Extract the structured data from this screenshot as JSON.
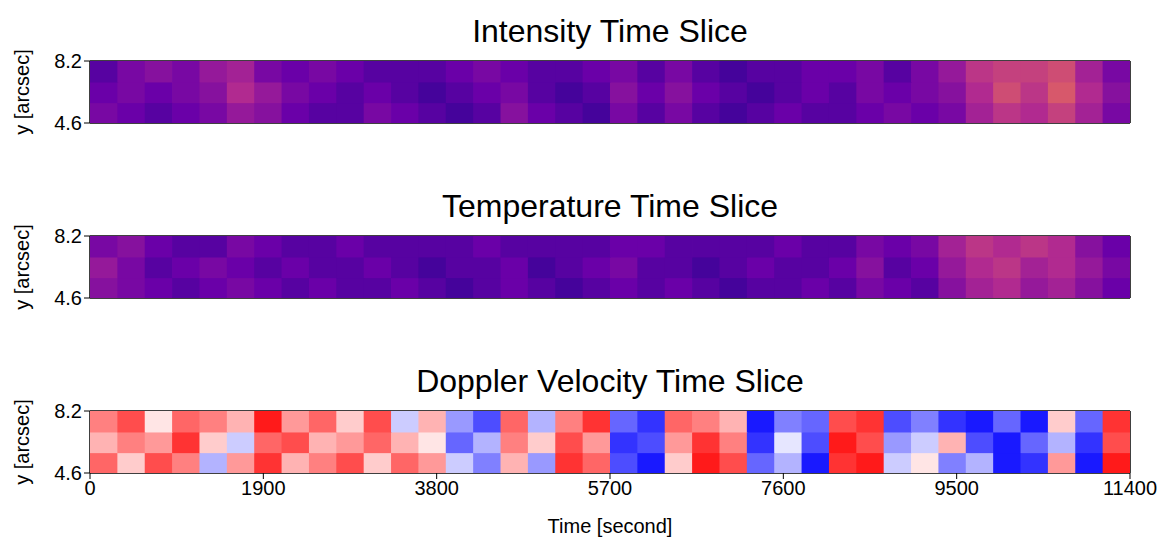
{
  "chart_data": [
    {
      "type": "heatmap",
      "title": "Intensity Time Slice",
      "y_label": "y [arcsec]",
      "color": "plasma",
      "tick_labels": "y",
      "x": [
        150,
        450,
        750,
        1050,
        1350,
        1650,
        1950,
        2250,
        2550,
        2850,
        3150,
        3450,
        3750,
        4050,
        4350,
        4650,
        4950,
        5250,
        5550,
        5850,
        6150,
        6450,
        6750,
        7050,
        7350,
        7650,
        7950,
        8250,
        8550,
        8850,
        9150,
        9450,
        9750,
        10050,
        10350,
        10650,
        10950,
        11250
      ],
      "y": [
        5.2,
        6.4,
        7.6
      ],
      "cells": [
        [
          0.3,
          0.25,
          0.2,
          0.25,
          0.3,
          0.4,
          0.35,
          0.25,
          0.2,
          0.2,
          0.3,
          0.25,
          0.2,
          0.15,
          0.2,
          0.35,
          0.25,
          0.2,
          0.15,
          0.3,
          0.2,
          0.3,
          0.2,
          0.15,
          0.2,
          0.25,
          0.2,
          0.2,
          0.25,
          0.3,
          0.25,
          0.3,
          0.45,
          0.55,
          0.5,
          0.6,
          0.45,
          0.3
        ],
        [
          0.25,
          0.3,
          0.25,
          0.3,
          0.35,
          0.5,
          0.4,
          0.3,
          0.25,
          0.2,
          0.25,
          0.2,
          0.15,
          0.2,
          0.25,
          0.3,
          0.2,
          0.15,
          0.2,
          0.35,
          0.25,
          0.35,
          0.25,
          0.2,
          0.15,
          0.2,
          0.25,
          0.2,
          0.3,
          0.25,
          0.3,
          0.35,
          0.5,
          0.65,
          0.55,
          0.7,
          0.5,
          0.35
        ],
        [
          0.2,
          0.3,
          0.35,
          0.3,
          0.4,
          0.45,
          0.3,
          0.25,
          0.3,
          0.25,
          0.2,
          0.2,
          0.2,
          0.25,
          0.3,
          0.25,
          0.2,
          0.2,
          0.25,
          0.3,
          0.2,
          0.3,
          0.2,
          0.15,
          0.2,
          0.2,
          0.25,
          0.25,
          0.3,
          0.2,
          0.3,
          0.4,
          0.55,
          0.6,
          0.6,
          0.65,
          0.45,
          0.3
        ]
      ],
      "zlim": [
        0,
        1
      ],
      "xlim": [
        0,
        11400
      ],
      "ylim": [
        4.6,
        8.2
      ],
      "yticks": [
        4.6,
        8.2
      ]
    },
    {
      "type": "heatmap",
      "title": "Temperature Time Slice",
      "y_label": "y [arcsec]",
      "color": "plasma",
      "tick_labels": "y",
      "x": [
        150,
        450,
        750,
        1050,
        1350,
        1650,
        1950,
        2250,
        2550,
        2850,
        3150,
        3450,
        3750,
        4050,
        4350,
        4650,
        4950,
        5250,
        5550,
        5850,
        6150,
        6450,
        6750,
        7050,
        7350,
        7650,
        7950,
        8250,
        8550,
        8850,
        9150,
        9450,
        9750,
        10050,
        10350,
        10650,
        10950,
        11250
      ],
      "y": [
        5.2,
        6.4,
        7.6
      ],
      "cells": [
        [
          0.35,
          0.3,
          0.25,
          0.2,
          0.25,
          0.3,
          0.25,
          0.2,
          0.25,
          0.2,
          0.2,
          0.25,
          0.2,
          0.15,
          0.2,
          0.25,
          0.2,
          0.15,
          0.2,
          0.25,
          0.2,
          0.25,
          0.2,
          0.15,
          0.2,
          0.2,
          0.25,
          0.2,
          0.3,
          0.25,
          0.2,
          0.35,
          0.45,
          0.5,
          0.4,
          0.45,
          0.35,
          0.25
        ],
        [
          0.4,
          0.3,
          0.2,
          0.25,
          0.3,
          0.25,
          0.2,
          0.25,
          0.2,
          0.2,
          0.25,
          0.2,
          0.15,
          0.2,
          0.2,
          0.25,
          0.15,
          0.2,
          0.25,
          0.3,
          0.2,
          0.2,
          0.15,
          0.2,
          0.25,
          0.2,
          0.2,
          0.25,
          0.35,
          0.2,
          0.25,
          0.4,
          0.5,
          0.55,
          0.45,
          0.5,
          0.4,
          0.3
        ],
        [
          0.3,
          0.35,
          0.25,
          0.2,
          0.2,
          0.3,
          0.25,
          0.2,
          0.2,
          0.25,
          0.2,
          0.2,
          0.2,
          0.2,
          0.25,
          0.2,
          0.2,
          0.2,
          0.2,
          0.25,
          0.25,
          0.2,
          0.2,
          0.2,
          0.2,
          0.25,
          0.2,
          0.2,
          0.3,
          0.25,
          0.3,
          0.45,
          0.55,
          0.5,
          0.55,
          0.5,
          0.35,
          0.25
        ]
      ],
      "zlim": [
        0,
        1
      ],
      "xlim": [
        0,
        11400
      ],
      "ylim": [
        4.6,
        8.2
      ],
      "yticks": [
        4.6,
        8.2
      ]
    },
    {
      "type": "heatmap",
      "title": "Doppler Velocity Time Slice",
      "y_label": "y [arcsec]",
      "x_label": "Time [second]",
      "color": "bwr",
      "x": [
        150,
        450,
        750,
        1050,
        1350,
        1650,
        1950,
        2250,
        2550,
        2850,
        3150,
        3450,
        3750,
        4050,
        4350,
        4650,
        4950,
        5250,
        5550,
        5850,
        6150,
        6450,
        6750,
        7050,
        7350,
        7650,
        7950,
        8250,
        8550,
        8850,
        9150,
        9450,
        9750,
        10050,
        10350,
        10650,
        10950,
        11250
      ],
      "y": [
        5.2,
        6.4,
        7.6
      ],
      "cells": [
        [
          0.6,
          0.2,
          0.7,
          0.5,
          -0.3,
          0.4,
          0.8,
          0.3,
          0.5,
          0.7,
          0.2,
          0.6,
          0.4,
          -0.2,
          -0.5,
          0.3,
          -0.4,
          0.8,
          0.6,
          -0.7,
          -0.9,
          0.2,
          0.9,
          0.7,
          -0.6,
          -0.3,
          -0.9,
          0.8,
          0.9,
          -0.2,
          0.1,
          -0.5,
          -0.3,
          -0.9,
          -0.8,
          0.4,
          -0.9,
          0.9
        ],
        [
          0.3,
          0.5,
          0.4,
          0.8,
          0.2,
          -0.2,
          0.6,
          0.7,
          0.3,
          0.4,
          0.6,
          0.3,
          0.1,
          -0.6,
          -0.3,
          0.5,
          0.2,
          0.7,
          0.4,
          -0.8,
          -0.7,
          0.4,
          0.8,
          0.5,
          -0.8,
          -0.1,
          -0.7,
          0.9,
          0.7,
          -0.4,
          -0.2,
          0.3,
          -0.7,
          -0.9,
          -0.6,
          -0.3,
          -0.8,
          0.7
        ],
        [
          0.5,
          0.7,
          0.1,
          0.6,
          0.5,
          0.3,
          0.9,
          0.4,
          0.6,
          0.2,
          0.7,
          -0.2,
          0.3,
          -0.4,
          -0.7,
          0.6,
          -0.3,
          0.5,
          0.8,
          -0.6,
          -0.8,
          0.6,
          0.5,
          0.3,
          -0.9,
          -0.5,
          -0.6,
          0.7,
          0.8,
          -0.7,
          -0.5,
          -0.8,
          -0.9,
          -0.6,
          -0.9,
          0.2,
          -0.6,
          0.8
        ]
      ],
      "zlim": [
        -1,
        1
      ],
      "xlim": [
        0,
        11400
      ],
      "ylim": [
        4.6,
        8.2
      ],
      "xticks": [
        0,
        1900,
        3800,
        5700,
        7600,
        9500,
        11400
      ],
      "yticks": [
        4.6,
        8.2
      ]
    }
  ]
}
